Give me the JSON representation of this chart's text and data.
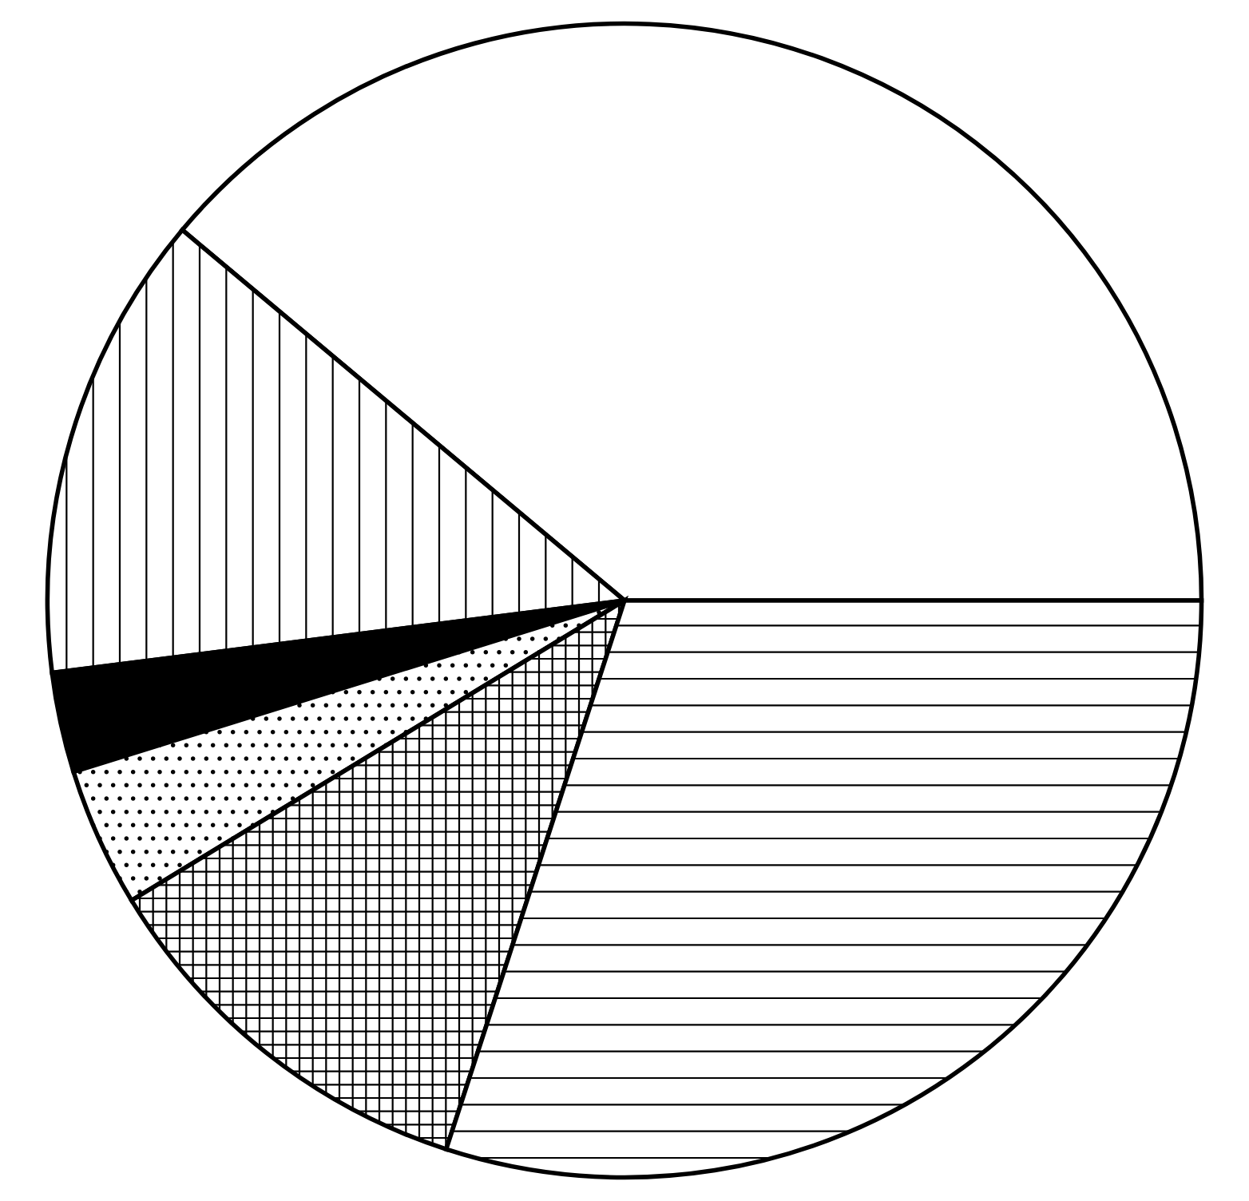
{
  "chart_data": {
    "type": "pie",
    "categories": [
      null,
      null,
      null,
      null,
      null,
      null
    ],
    "values": [
      38.9,
      13.1,
      2.8,
      3.9,
      11.3,
      30.0
    ],
    "colors": [
      "#ffffff",
      "#ffffff",
      "#000000",
      "#ffffff",
      "#ffffff",
      "#ffffff"
    ]
  }
}
